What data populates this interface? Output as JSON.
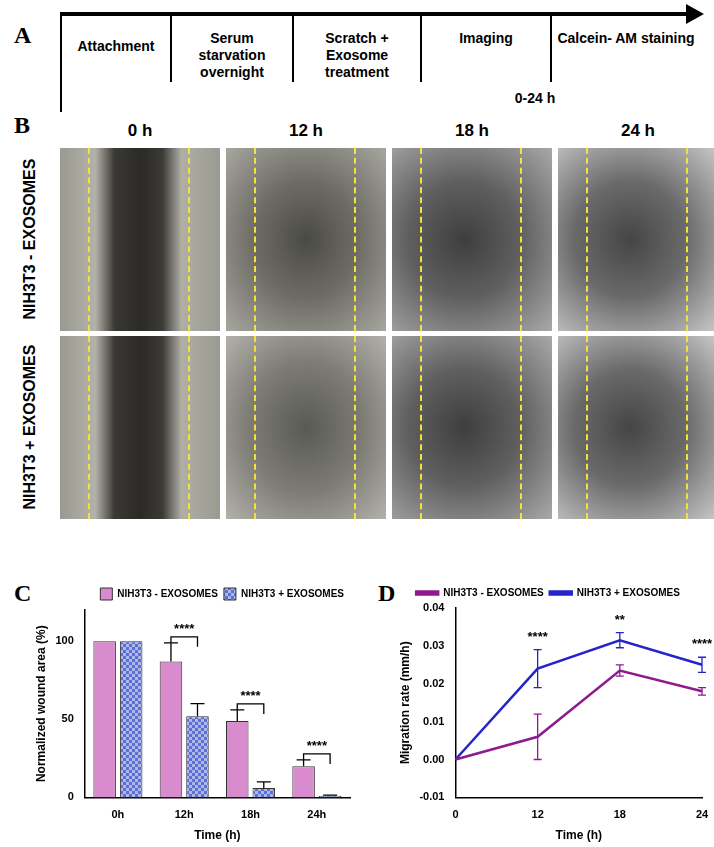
{
  "panel_a": {
    "label": "A",
    "steps": [
      "Attachment",
      "Serum starvation overnight",
      "Scratch + Exosome treatment",
      "Imaging",
      "Calcein- AM staining"
    ],
    "time_note": "0-24 h"
  },
  "panel_b": {
    "label": "B",
    "columns": [
      "0 h",
      "12 h",
      "18 h",
      "24 h"
    ],
    "rows": [
      "NIH3T3 - EXOSOMES",
      "NIH3T3 + EXOSOMES"
    ]
  },
  "chart_data": [
    {
      "panel": "C",
      "type": "bar",
      "categories": [
        "0h",
        "12h",
        "18h",
        "24h"
      ],
      "x_label": "Time (h)",
      "y_label": "Normalized wound area (%)",
      "ylim": [
        0,
        120
      ],
      "yticks": [
        0,
        50,
        100
      ],
      "grid": false,
      "legend": "upper right",
      "series": [
        {
          "name": "NIH3T3 - EXOSOMES",
          "color": "#d98ccd",
          "values": [
            100,
            87,
            49,
            20
          ],
          "errors": [
            0,
            12,
            7,
            4
          ]
        },
        {
          "name": "NIH3T3 + EXOSOMES",
          "color": "#5b6fd6",
          "values": [
            100,
            52,
            6,
            1
          ],
          "errors": [
            0,
            8,
            4,
            0.5
          ]
        }
      ],
      "annotations": [
        {
          "category": "12h",
          "text": "****"
        },
        {
          "category": "18h",
          "text": "****"
        },
        {
          "category": "24h",
          "text": "****"
        }
      ]
    },
    {
      "panel": "D",
      "type": "line",
      "categories": [
        "0",
        "12",
        "18",
        "24"
      ],
      "x_label": "Time (h)",
      "y_label": "Migration rate (mm/h)",
      "ylim": [
        -0.01,
        0.04
      ],
      "yticks": [
        -0.01,
        {
          "value": 0,
          "label": "0.00"
        },
        0.01,
        0.02,
        0.03,
        0.04
      ],
      "grid": false,
      "legend": "top",
      "series": [
        {
          "name": "NIH3T3 - EXOSOMES",
          "color": "#8e1a8e",
          "values": [
            0,
            0.006,
            0.0235,
            0.018
          ],
          "errors": [
            0,
            0.006,
            0.0015,
            0.001
          ]
        },
        {
          "name": "NIH3T3 + EXOSOMES",
          "color": "#2424c8",
          "values": [
            0,
            0.024,
            0.0315,
            0.025
          ],
          "errors": [
            0,
            0.005,
            0.002,
            0.002
          ]
        }
      ],
      "annotations": [
        {
          "category": "12",
          "text": "****"
        },
        {
          "category": "18",
          "text": "**"
        },
        {
          "category": "24",
          "text": "****"
        }
      ]
    }
  ]
}
